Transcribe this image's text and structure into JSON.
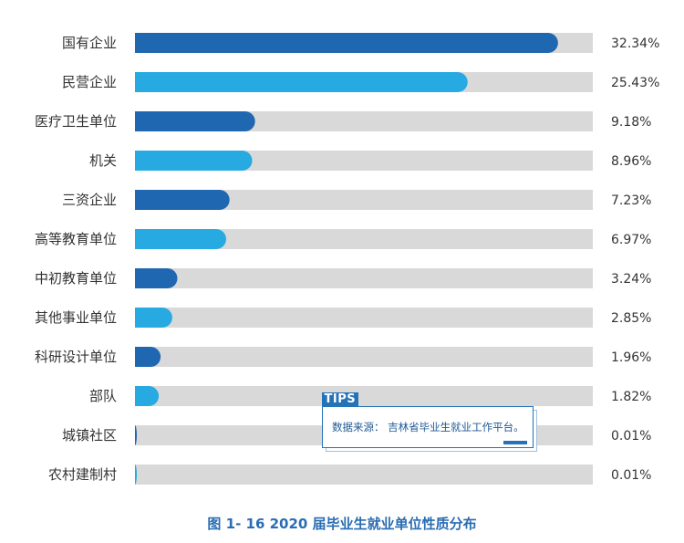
{
  "chart_data": {
    "type": "bar",
    "orientation": "horizontal",
    "categories": [
      "国有企业",
      "民营企业",
      "医疗卫生单位",
      "机关",
      "三资企业",
      "高等教育单位",
      "中初教育单位",
      "其他事业单位",
      "科研设计单位",
      "部队",
      "城镇社区",
      "农村建制村"
    ],
    "values": [
      32.34,
      25.43,
      9.18,
      8.96,
      7.23,
      6.97,
      3.24,
      2.85,
      1.96,
      1.82,
      0.01,
      0.01
    ],
    "value_labels": [
      "32.34%",
      "25.43%",
      "9.18%",
      "8.96%",
      "7.23%",
      "6.97%",
      "3.24%",
      "2.85%",
      "1.96%",
      "1.82%",
      "0.01%",
      "0.01%"
    ],
    "xlim": [
      0,
      35
    ],
    "colors": [
      "#1f67b1",
      "#27a9e1"
    ],
    "track_color": "#d9d9d9",
    "grid": false,
    "legend": "none"
  },
  "tips": {
    "tag": "TIPS",
    "text": "数据来源：  吉林省毕业生就业工作平台。"
  },
  "caption": "图 1- 16  2020 届毕业生就业单位性质分布"
}
